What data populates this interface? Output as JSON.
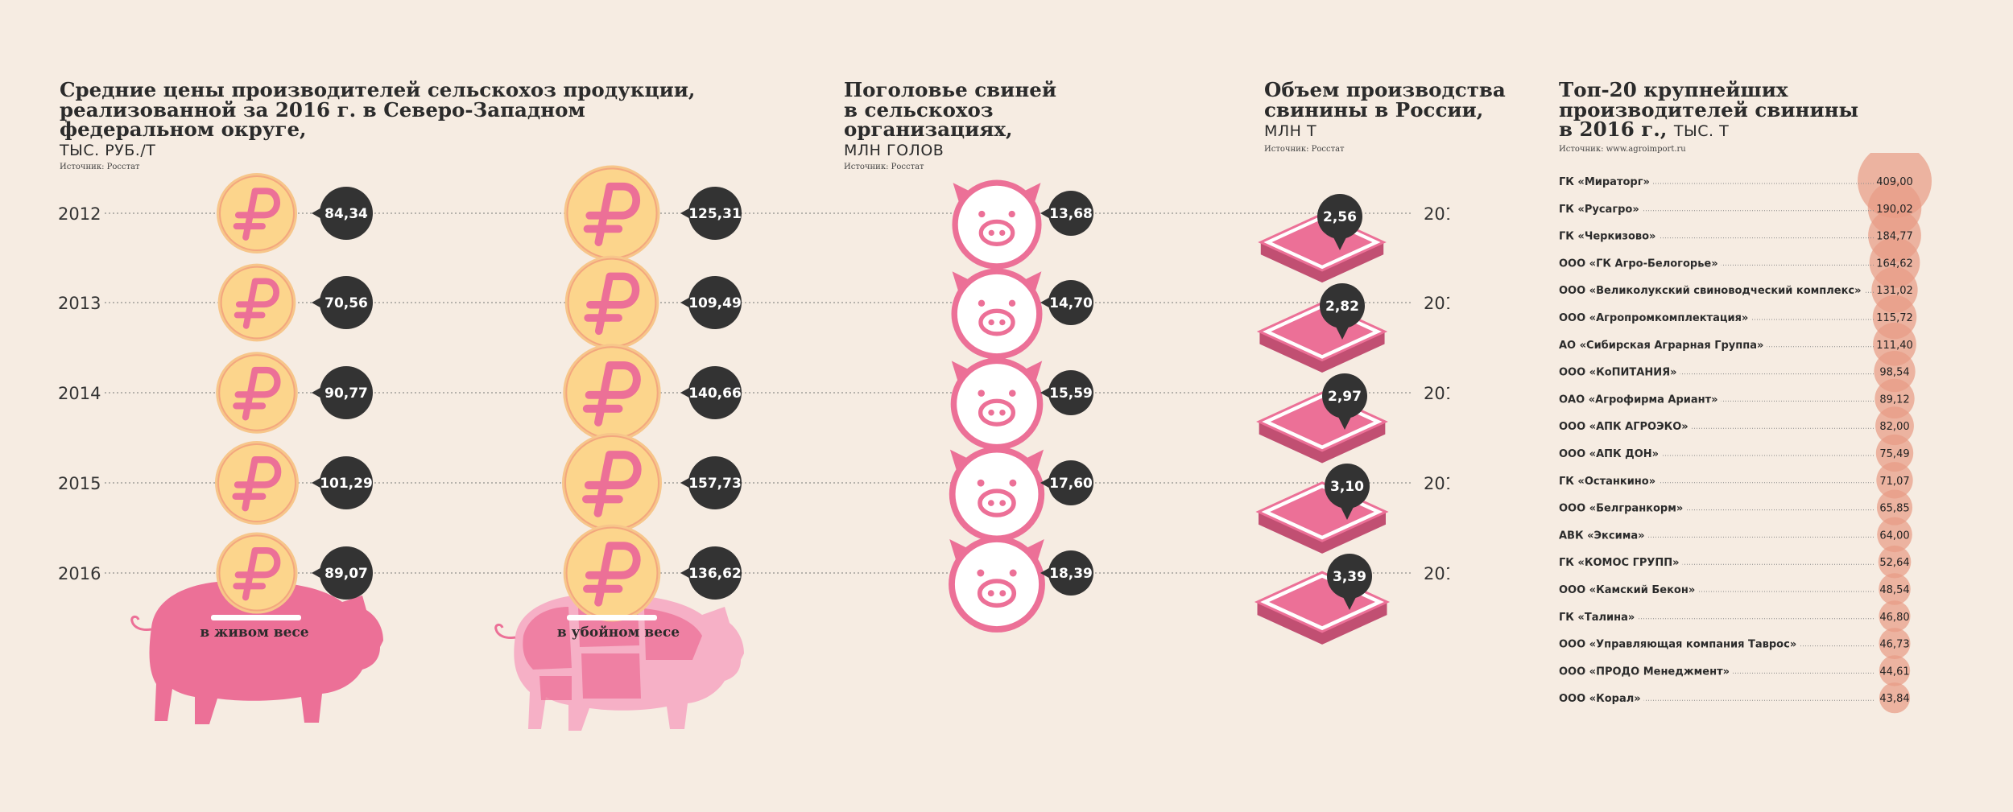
{
  "colors": {
    "background": "#f6ece2",
    "pink": "#ec7097",
    "light_pink": "#f6b0c6",
    "coin": "#fcd58c",
    "bubble": "#333333",
    "top_circle": "#e89b84"
  },
  "panel1": {
    "title_lines": [
      "Средние цены производителей сельскохоз продукции,",
      "реализованной за 2016 г. в Северо-Западном",
      "федеральном округе,"
    ],
    "unit": "тыс. руб./т",
    "source": "Источник: Росстат",
    "label_live": "в живом весе",
    "label_slaughter": "в убойном весе"
  },
  "panel2": {
    "title_lines": [
      "Поголовье свиней",
      "в сельскохоз",
      "организациях,"
    ],
    "unit": "млн голов",
    "source": "Источник: Росстат"
  },
  "panel3": {
    "title_lines": [
      "Объем производства",
      "свинины в России,"
    ],
    "unit": "млн т",
    "source": "Источник: Росстат"
  },
  "panel4": {
    "title_lines": [
      "Топ-20 крупнейших",
      "производителей свинины"
    ],
    "title_last": "в 2016 г.,",
    "unit": "тыс. т",
    "source": "Источник: www.agroimport.ru"
  },
  "chart_data": [
    {
      "type": "bar",
      "title": "Средние цены производителей: в живом весе",
      "categories": [
        "2012",
        "2013",
        "2014",
        "2015",
        "2016"
      ],
      "values": [
        84.34,
        70.56,
        90.77,
        101.29,
        89.07
      ],
      "labels": [
        "84,34",
        "70,56",
        "90,77",
        "101,29",
        "89,07"
      ]
    },
    {
      "type": "bar",
      "title": "Средние цены производителей: в убойном весе",
      "categories": [
        "2012",
        "2013",
        "2014",
        "2015",
        "2016"
      ],
      "values": [
        125.31,
        109.49,
        140.66,
        157.73,
        136.62
      ],
      "labels": [
        "125,31",
        "109,49",
        "140,66",
        "157,73",
        "136,62"
      ]
    },
    {
      "type": "bar",
      "title": "Поголовье свиней в сельскохоз организациях",
      "categories": [
        "2012",
        "2013",
        "2014",
        "2015",
        "2016"
      ],
      "values": [
        13.68,
        14.7,
        15.59,
        17.6,
        18.39
      ],
      "labels": [
        "13,68",
        "14,70",
        "15,59",
        "17,60",
        "18,39"
      ]
    },
    {
      "type": "bar",
      "title": "Объем производства свинины в России",
      "categories": [
        "2012",
        "2013",
        "2014",
        "2015",
        "2016"
      ],
      "values": [
        2.56,
        2.82,
        2.97,
        3.1,
        3.39
      ],
      "labels": [
        "2,56",
        "2,82",
        "2,97",
        "3,10",
        "3,39"
      ]
    },
    {
      "type": "bar",
      "title": "Топ-20 крупнейших производителей свинины в 2016 г.",
      "categories": [
        "ГК «Мираторг»",
        "ГК «Русагро»",
        "ГК «Черкизово»",
        "ООО «ГК Агро-Белогорье»",
        "ООО «Великолукский свиноводческий комплекс»",
        "ООО «Агропромкомплектация»",
        "АО «Сибирская Аграрная Группа»",
        "ООО «КоПИТАНИЯ»",
        "ОАО «Агрофирма Ариант»",
        "ООО «АПК АГРОЭКО»",
        "ООО «АПК ДОН»",
        "ГК «Останкино»",
        "ООО «Белгранкорм»",
        "АВК «Эксима»",
        "ГК «КОМОС ГРУПП»",
        "ООО «Камский Бекон»",
        "ГК «Талина»",
        "ООО «Управляющая компания Таврос»",
        "ООО «ПРОДО Менеджмент»",
        "ООО «Корал»"
      ],
      "values": [
        409.0,
        190.02,
        184.77,
        164.62,
        131.02,
        115.72,
        111.4,
        98.54,
        89.12,
        82.0,
        75.49,
        71.07,
        65.85,
        64.0,
        52.64,
        48.54,
        46.8,
        46.73,
        44.61,
        43.84
      ],
      "labels": [
        "409,00",
        "190,02",
        "184,77",
        "164,62",
        "131,02",
        "115,72",
        "111,40",
        "98,54",
        "89,12",
        "82,00",
        "75,49",
        "71,07",
        "65,85",
        "64,00",
        "52,64",
        "48,54",
        "46,80",
        "46,73",
        "44,61",
        "43,84"
      ]
    }
  ]
}
